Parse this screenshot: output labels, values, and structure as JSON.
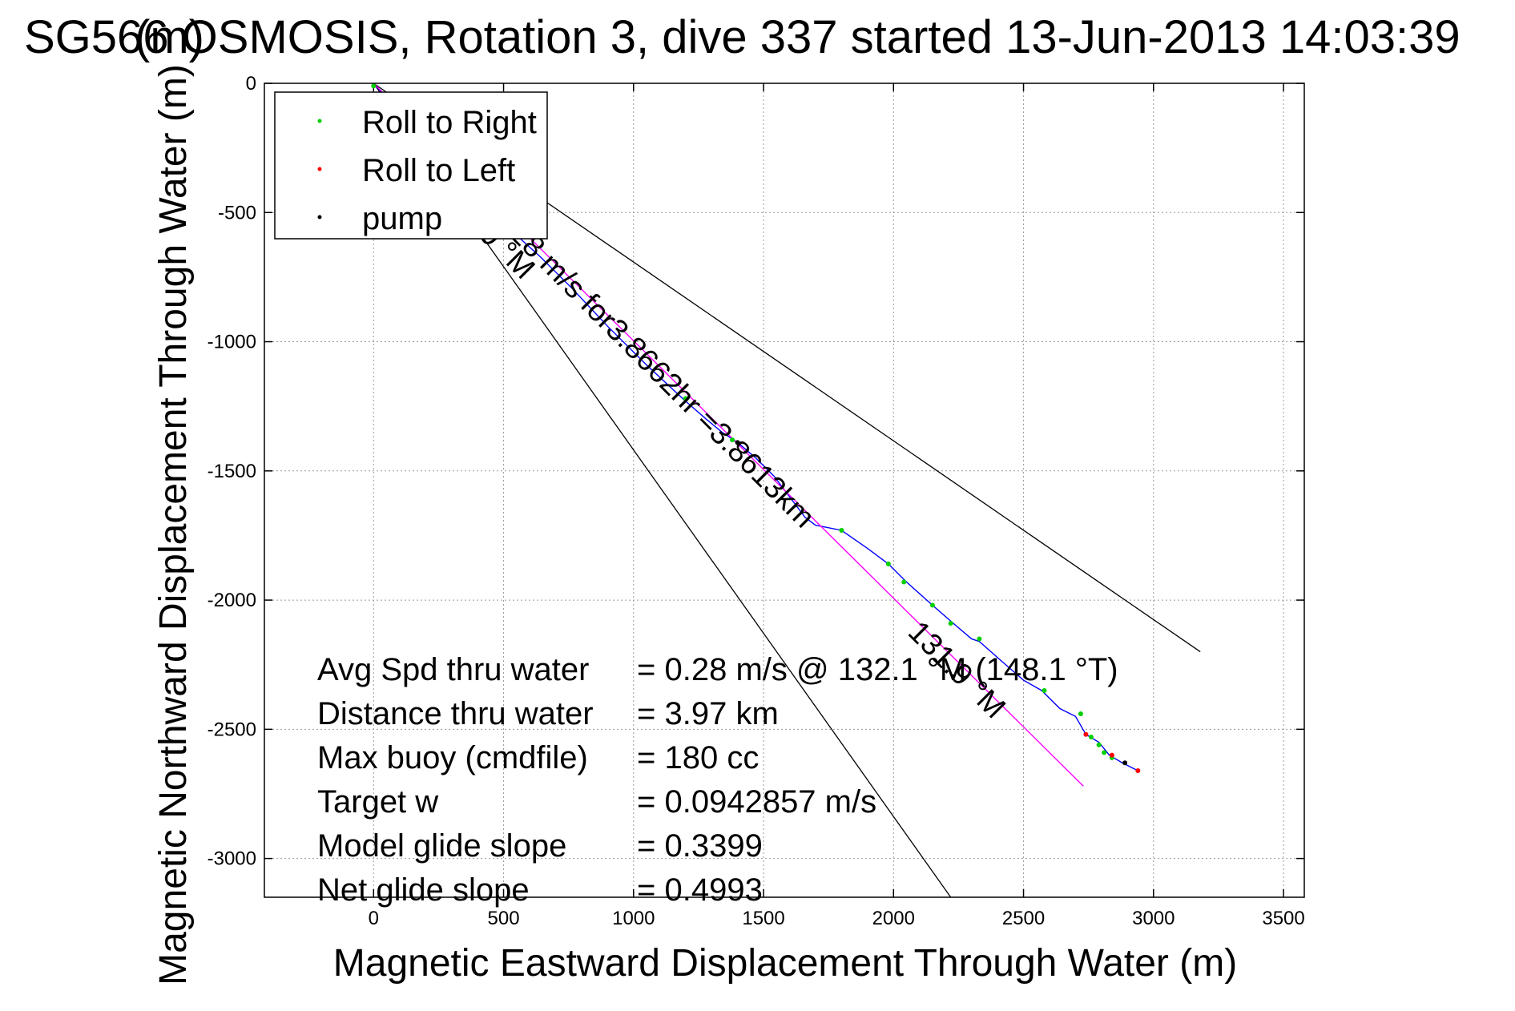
{
  "chart_data": {
    "type": "line",
    "title": "SG566 OSMOSIS, Rotation 3, dive 337 started 13-Jun-2013 14:03:39",
    "title_overlap": "(m)",
    "xlabel": "Magnetic Eastward Displacement Through Water (m)",
    "ylabel": "Magnetic Northward Displacement Through Water (m)",
    "xlim": [
      -420,
      3580
    ],
    "ylim": [
      -3150,
      0
    ],
    "xticks": [
      0,
      500,
      1000,
      1500,
      2000,
      2500,
      3000,
      3500
    ],
    "yticks": [
      0,
      -500,
      -1000,
      -1500,
      -2000,
      -2500,
      -3000
    ],
    "grid": true,
    "legend": {
      "placement": "top-left",
      "entries": [
        {
          "label": "Roll to Right",
          "color": "#00d000"
        },
        {
          "label": "Roll to Left",
          "color": "#ff0000"
        },
        {
          "label": "pump",
          "color": "#000000"
        }
      ]
    },
    "series": [
      {
        "color": "#0000ff",
        "x": [
          0,
          80,
          160,
          240,
          330,
          430,
          530,
          640,
          760,
          900,
          1050,
          1200,
          1280,
          1340,
          1400,
          1470,
          1540,
          1600,
          1660,
          1700,
          1800,
          1900,
          1980,
          2050,
          2150,
          2230,
          2300,
          2330,
          2420,
          2500,
          2570,
          2640,
          2700,
          2740,
          2790,
          2830,
          2880,
          2940
        ],
        "y": [
          0,
          -90,
          -190,
          -290,
          -390,
          -480,
          -570,
          -670,
          -790,
          -940,
          -1090,
          -1230,
          -1300,
          -1350,
          -1390,
          -1450,
          -1520,
          -1600,
          -1680,
          -1710,
          -1730,
          -1800,
          -1860,
          -1930,
          -2020,
          -2090,
          -2150,
          -2160,
          -2240,
          -2310,
          -2350,
          -2420,
          -2450,
          -2520,
          -2550,
          -2600,
          -2630,
          -2660
        ]
      },
      {
        "color": "#ff00ff",
        "x": [
          0,
          2730
        ],
        "y": [
          0,
          -2720
        ]
      }
    ],
    "lines": [
      {
        "color": "#000000",
        "x": [
          0,
          3180
        ],
        "y": [
          0,
          -2200
        ]
      },
      {
        "color": "#000000",
        "x": [
          0,
          2220
        ],
        "y": [
          0,
          -3150
        ]
      }
    ],
    "markers": {
      "green": {
        "x": [
          0,
          1200,
          1380,
          1800,
          1980,
          2040,
          2150,
          2220,
          2330,
          2580,
          2720,
          2760,
          2790,
          2810,
          2840
        ],
        "y": [
          -10,
          -1220,
          -1380,
          -1730,
          -1860,
          -1930,
          -2020,
          -2090,
          -2150,
          -2350,
          -2440,
          -2530,
          -2560,
          -2590,
          -2610
        ]
      },
      "red": {
        "x": [
          2740,
          2840,
          2940
        ],
        "y": [
          -2520,
          -2600,
          -2660
        ]
      },
      "black": {
        "x": [
          1400,
          2890
        ],
        "y": [
          -1390,
          -2630
        ]
      }
    },
    "annotations": [
      {
        "text": "131.9 °M",
        "x": 2050,
        "y": -2130,
        "rotation": 45
      },
      {
        "text": "0.28 m/s for3.8662hr =3.8613km",
        "x": 450,
        "y": -520,
        "rotation": 45
      },
      {
        "text": "135.9 °M",
        "x": 240,
        "y": -430,
        "rotation": 45
      }
    ],
    "stats": [
      {
        "label": "Avg Spd thru water",
        "value": "=  0.28 m/s @ 132.1 °M (148.1 °T)"
      },
      {
        "label": "Distance thru water",
        "value": "=  3.97 km"
      },
      {
        "label": "Max buoy (cmdfile)",
        "value": "= 180 cc"
      },
      {
        "label": "Target w",
        "value": "= 0.0942857 m/s"
      },
      {
        "label": "Model glide slope",
        "value": "= 0.3399"
      },
      {
        "label": "Net glide slope",
        "value": "= 0.4993"
      }
    ]
  }
}
